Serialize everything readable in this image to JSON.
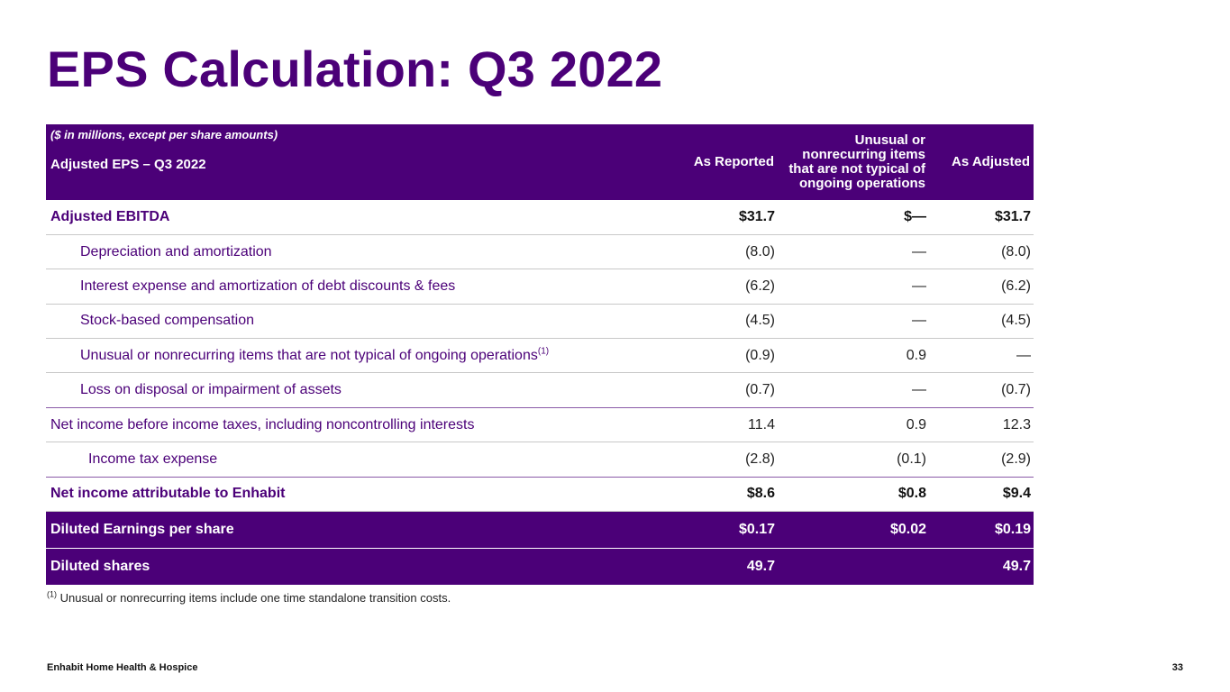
{
  "page": {
    "title": "EPS Calculation: Q3 2022",
    "footer_left": "Enhabit Home Health & Hospice",
    "page_number": "33",
    "footnote_marker": "(1)",
    "footnote_text": "Unusual or nonrecurring items include one time standalone transition costs."
  },
  "table": {
    "units_note": "($ in millions, except per share amounts)",
    "header_label": "Adjusted EPS – Q3 2022",
    "col_reported": "As Reported",
    "col_unusual": "Unusual or nonrecurring items that are not typical of ongoing operations",
    "col_adjusted": "As Adjusted",
    "rows": [
      {
        "label": "Adjusted EBITDA",
        "reported": "$31.7",
        "unusual": "$—",
        "adjusted": "$31.7"
      },
      {
        "label": "Depreciation and amortization",
        "reported": "(8.0)",
        "unusual": "—",
        "adjusted": "(8.0)"
      },
      {
        "label": "Interest expense and amortization of debt discounts & fees",
        "reported": "(6.2)",
        "unusual": "—",
        "adjusted": "(6.2)"
      },
      {
        "label": "Stock-based compensation",
        "reported": "(4.5)",
        "unusual": "—",
        "adjusted": "(4.5)"
      },
      {
        "label": "Unusual or nonrecurring items that are not typical of ongoing operations",
        "marker": "(1)",
        "reported": "(0.9)",
        "unusual": "0.9",
        "adjusted": "—"
      },
      {
        "label": "Loss on disposal or impairment of assets",
        "reported": "(0.7)",
        "unusual": "—",
        "adjusted": "(0.7)"
      },
      {
        "label": "Net income before income taxes, including noncontrolling interests",
        "reported": "11.4",
        "unusual": "0.9",
        "adjusted": "12.3"
      },
      {
        "label": "Income tax expense",
        "reported": "(2.8)",
        "unusual": "(0.1)",
        "adjusted": "(2.9)"
      },
      {
        "label": "Net income attributable to Enhabit",
        "reported": "$8.6",
        "unusual": "$0.8",
        "adjusted": "$9.4"
      },
      {
        "label": "Diluted Earnings per share",
        "reported": "$0.17",
        "unusual": "$0.02",
        "adjusted": "$0.19"
      },
      {
        "label": "Diluted shares",
        "reported": "49.7",
        "unusual": "",
        "adjusted": "49.7"
      }
    ]
  },
  "colors": {
    "brand_purple": "#4b0078"
  }
}
